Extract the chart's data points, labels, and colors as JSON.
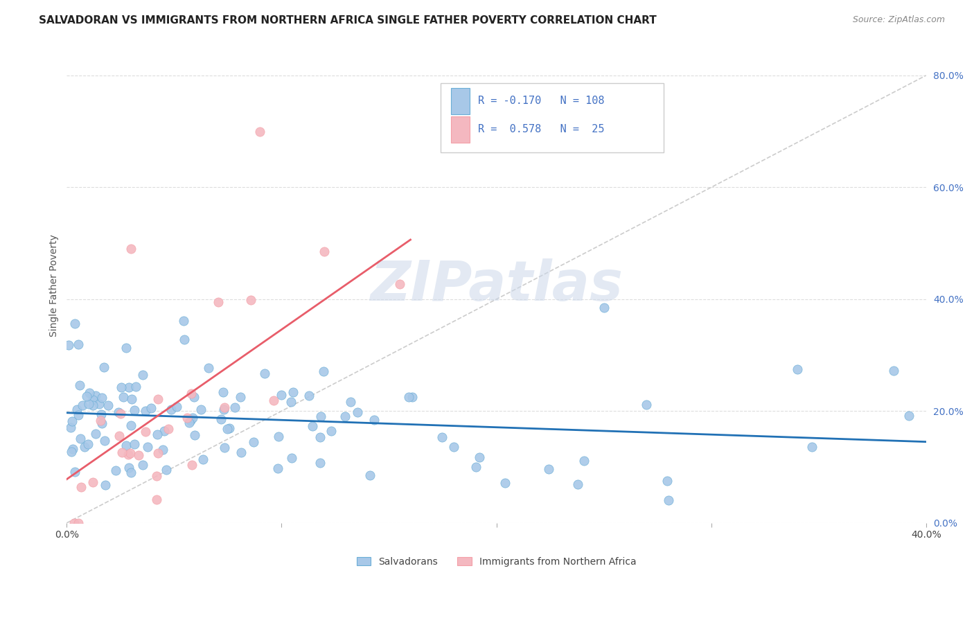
{
  "title": "SALVADORAN VS IMMIGRANTS FROM NORTHERN AFRICA SINGLE FATHER POVERTY CORRELATION CHART",
  "source": "Source: ZipAtlas.com",
  "ylabel": "Single Father Poverty",
  "ytick_labels": [
    "0.0%",
    "20.0%",
    "40.0%",
    "60.0%",
    "80.0%"
  ],
  "ytick_values": [
    0.0,
    0.2,
    0.4,
    0.6,
    0.8
  ],
  "xlim": [
    0.0,
    0.4
  ],
  "ylim": [
    0.0,
    0.85
  ],
  "blue_color": "#6baed6",
  "pink_color": "#f4a0a8",
  "blue_line_color": "#2171b5",
  "pink_line_color": "#e85d6a",
  "blue_scatter_color": "#a8c8e8",
  "pink_scatter_color": "#f4b8c0",
  "diagonal_color": "#cccccc",
  "title_fontsize": 11,
  "axis_label_fontsize": 10,
  "tick_fontsize": 10,
  "blue_R": -0.17,
  "pink_R": 0.578,
  "blue_N": 108,
  "pink_N": 25,
  "blue_slope": -0.22,
  "blue_intercept": 0.197,
  "pink_slope": 2.8,
  "pink_intercept": 0.03,
  "watermark_color": "#ccd8ea",
  "right_tick_color": "#4472c4"
}
